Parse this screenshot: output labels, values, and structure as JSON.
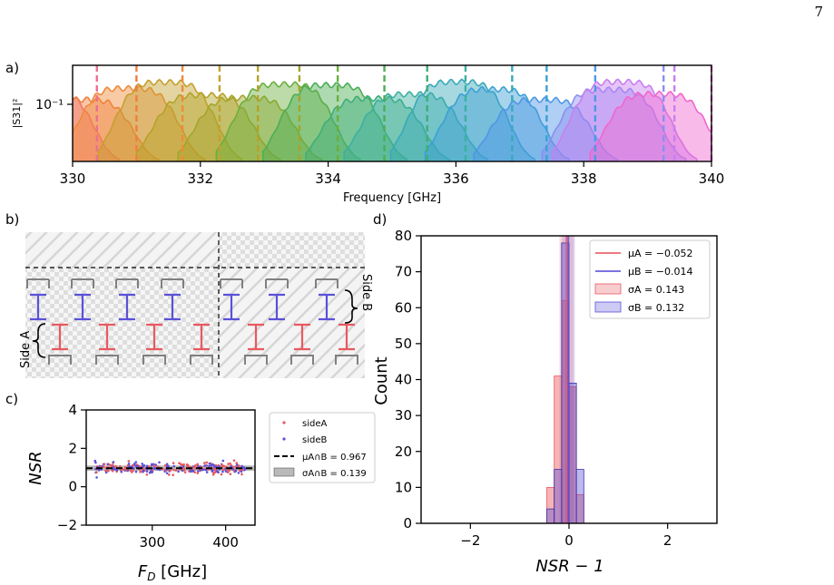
{
  "page_number": "7",
  "panel_labels": {
    "a": "a)",
    "b": "b)",
    "c": "c)",
    "d": "d)"
  },
  "colors": {
    "sideA": "#e8595f",
    "sideB": "#5a50d8",
    "hatch": "#d9d9d9",
    "resonator_gray": "#808080",
    "band": "#808080"
  },
  "chart_data": [
    {
      "id": "a",
      "type": "area",
      "title": "",
      "xlabel": "Frequency [GHz]",
      "ylabel": "|S31|²",
      "xlim": [
        330,
        340
      ],
      "xticks": [
        "330",
        "332",
        "334",
        "336",
        "338",
        "340"
      ],
      "ytick_label": "10⁻¹",
      "yscale": "log",
      "resonance_markers_ghz": [
        330.38,
        331.0,
        331.72,
        332.3,
        332.9,
        333.55,
        334.15,
        334.88,
        335.55,
        336.15,
        336.88,
        337.42,
        338.18,
        339.25,
        339.42,
        340.0
      ],
      "colors": [
        "#ee6e8f",
        "#f07e3e",
        "#ef8a3a",
        "#c4a02f",
        "#b3a329",
        "#a4a52b",
        "#6aaf3e",
        "#4cae55",
        "#3fae7a",
        "#3bb0a1",
        "#3aa9b9",
        "#3ba0d4",
        "#4e97e6",
        "#8c8ff0",
        "#c77ff1",
        "#ef67cf"
      ]
    },
    {
      "id": "b",
      "type": "diagram",
      "side_a_label": "Side A",
      "side_b_label": "Side B"
    },
    {
      "id": "c",
      "type": "scatter",
      "xlabel": "F_D [GHz]",
      "ylabel": "NSR",
      "xlim": [
        210,
        440
      ],
      "ylim": [
        -2,
        4
      ],
      "xticks": [
        300,
        400
      ],
      "yticks": [
        -2,
        0,
        2,
        4
      ],
      "mean": 0.967,
      "sigma": 0.139,
      "series": [
        {
          "name": "sideA"
        },
        {
          "name": "sideB"
        }
      ],
      "legend": [
        {
          "label": "sideA"
        },
        {
          "label": "sideB"
        },
        {
          "label": "μA∩B = 0.967"
        },
        {
          "label": "σA∩B = 0.139"
        }
      ]
    },
    {
      "id": "d",
      "type": "bar",
      "xlabel": "NSR − 1",
      "ylabel": "Count",
      "xlim": [
        -3,
        3
      ],
      "ylim": [
        0,
        80
      ],
      "xticks": [
        -2,
        0,
        2
      ],
      "yticks": [
        0,
        10,
        20,
        30,
        40,
        50,
        60,
        70,
        80
      ],
      "bin_edges": [
        -0.45,
        -0.3,
        -0.15,
        0.0,
        0.15,
        0.3
      ],
      "series": [
        {
          "name": "A",
          "values": [
            10,
            41,
            62,
            38,
            8
          ]
        },
        {
          "name": "B",
          "values": [
            4,
            15,
            78,
            39,
            15
          ]
        }
      ],
      "mean_a": -0.052,
      "mean_b": -0.014,
      "sigma_a": 0.143,
      "sigma_b": 0.132,
      "legend": [
        {
          "label": "μA = −0.052"
        },
        {
          "label": "μB = −0.014"
        },
        {
          "label": "σA = 0.143"
        },
        {
          "label": "σB = 0.132"
        }
      ]
    }
  ]
}
